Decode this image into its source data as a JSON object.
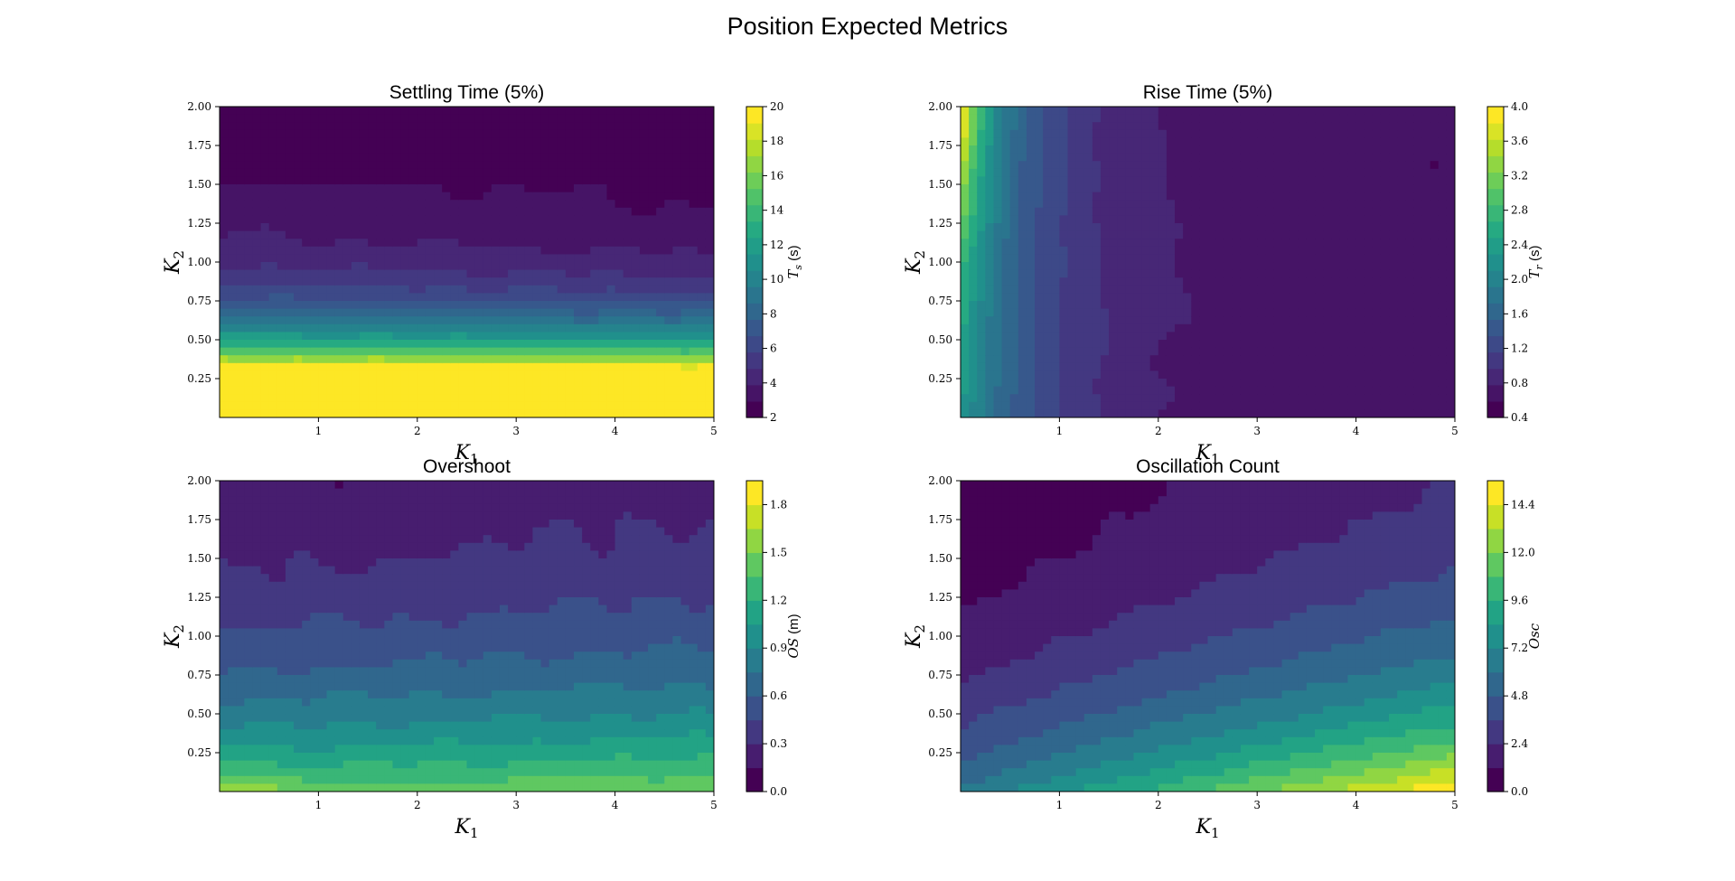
{
  "figure": {
    "suptitle": "Position Expected Metrics"
  },
  "chart_data": [
    {
      "type": "heatmap",
      "id": "settling",
      "title": "Settling Time (5%)",
      "xlabel": "K_1",
      "ylabel": "K_2",
      "xlim": [
        0,
        5
      ],
      "ylim": [
        0,
        2
      ],
      "xticks": [
        "1",
        "2",
        "3",
        "4",
        "5"
      ],
      "yticks": [
        "0.25",
        "0.50",
        "0.75",
        "1.00",
        "1.25",
        "1.50",
        "1.75",
        "2.00"
      ],
      "colorbar": {
        "label": "T_s (s)",
        "range": [
          2,
          20
        ],
        "ticks": [
          "2",
          "4",
          "6",
          "8",
          "10",
          "12",
          "14",
          "16",
          "18",
          "20"
        ]
      },
      "colormap": "viridis",
      "levels": 19
    },
    {
      "type": "heatmap",
      "id": "rise",
      "title": "Rise Time (5%)",
      "xlabel": "K_1",
      "ylabel": "K_2",
      "xlim": [
        0,
        5
      ],
      "ylim": [
        0,
        2
      ],
      "xticks": [
        "1",
        "2",
        "3",
        "4",
        "5"
      ],
      "yticks": [
        "0.25",
        "0.50",
        "0.75",
        "1.00",
        "1.25",
        "1.50",
        "1.75",
        "2.00"
      ],
      "colorbar": {
        "label": "T_r (s)",
        "range": [
          0.4,
          4.0
        ],
        "ticks": [
          "0.4",
          "0.8",
          "1.2",
          "1.6",
          "2.0",
          "2.4",
          "2.8",
          "3.2",
          "3.6",
          "4.0"
        ]
      },
      "colormap": "viridis",
      "levels": 19
    },
    {
      "type": "heatmap",
      "id": "overshoot",
      "title": "Overshoot",
      "xlabel": "K_1",
      "ylabel": "K_2",
      "xlim": [
        0,
        5
      ],
      "ylim": [
        0,
        2
      ],
      "xticks": [
        "1",
        "2",
        "3",
        "4",
        "5"
      ],
      "yticks": [
        "0.25",
        "0.50",
        "0.75",
        "1.00",
        "1.25",
        "1.50",
        "1.75",
        "2.00"
      ],
      "colorbar": {
        "label": "OS (m)",
        "range": [
          0.0,
          1.95
        ],
        "ticks": [
          "0.0",
          "0.3",
          "0.6",
          "0.9",
          "1.2",
          "1.5",
          "1.8"
        ]
      },
      "colormap": "viridis",
      "levels": 13
    },
    {
      "type": "heatmap",
      "id": "oscillation",
      "title": "Oscillation Count",
      "xlabel": "K_1",
      "ylabel": "K_2",
      "xlim": [
        0,
        5
      ],
      "ylim": [
        0,
        2
      ],
      "xticks": [
        "1",
        "2",
        "3",
        "4",
        "5"
      ],
      "yticks": [
        "0.25",
        "0.50",
        "0.75",
        "1.00",
        "1.25",
        "1.50",
        "1.75",
        "2.00"
      ],
      "colorbar": {
        "label": "Osc",
        "range": [
          0.0,
          15.6
        ],
        "ticks": [
          "0.0",
          "2.4",
          "4.8",
          "7.2",
          "9.6",
          "12.0",
          "14.4"
        ]
      },
      "colormap": "viridis",
      "levels": 13
    }
  ]
}
